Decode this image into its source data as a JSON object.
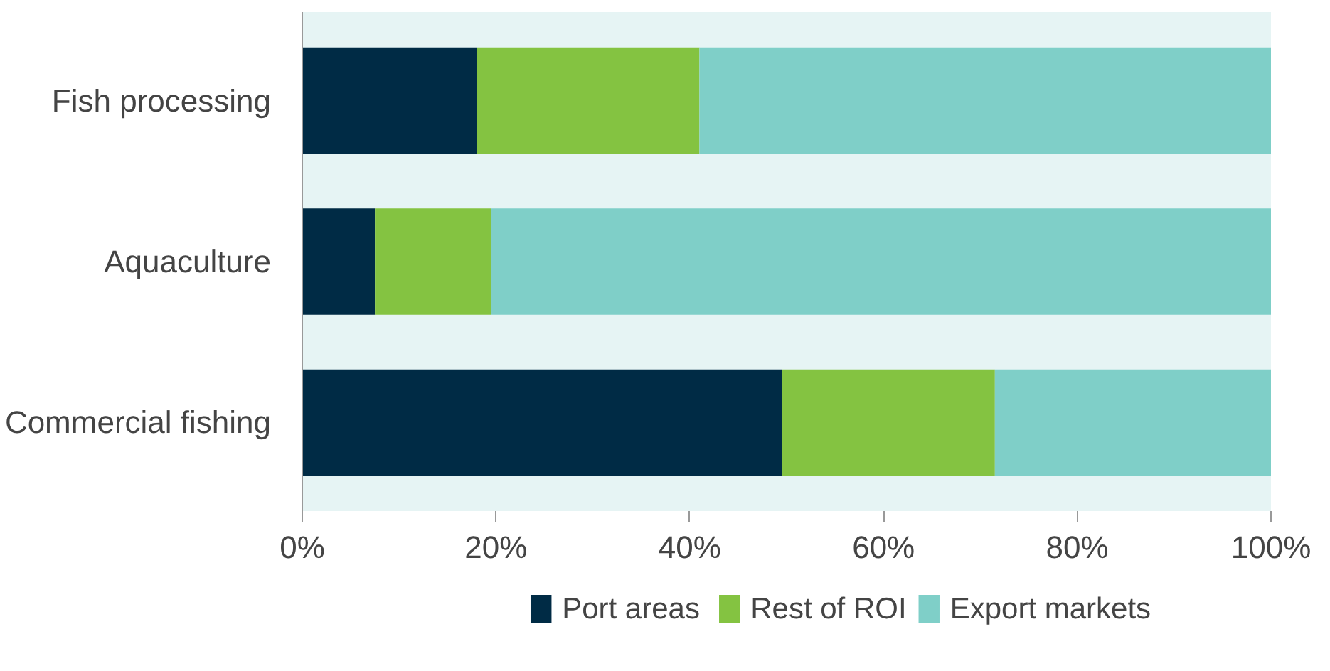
{
  "chart_data": {
    "type": "bar",
    "orientation": "horizontal",
    "stacked": true,
    "categories": [
      "Fish processing",
      "Aquaculture",
      "Commercial fishing"
    ],
    "series": [
      {
        "name": "Port areas",
        "color": "#002b45",
        "values": [
          18,
          7.5,
          49.5
        ]
      },
      {
        "name": "Rest of ROI",
        "color": "#84c341",
        "values": [
          23,
          12,
          22
        ]
      },
      {
        "name": "Export markets",
        "color": "#7fcfc8",
        "values": [
          59,
          80.5,
          28.5
        ]
      }
    ],
    "xlim": [
      0,
      100
    ],
    "xticks": [
      {
        "value": 0,
        "label": "0%"
      },
      {
        "value": 20,
        "label": "20%"
      },
      {
        "value": 40,
        "label": "40%"
      },
      {
        "value": 60,
        "label": "60%"
      },
      {
        "value": 80,
        "label": "80%"
      },
      {
        "value": 100,
        "label": "100%"
      }
    ],
    "grid": false,
    "legend": "bottom"
  }
}
